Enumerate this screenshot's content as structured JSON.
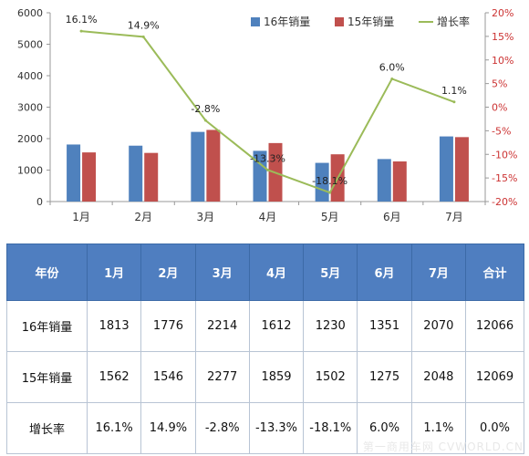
{
  "chart_data": {
    "type": "bar",
    "categories": [
      "1月",
      "2月",
      "3月",
      "4月",
      "5月",
      "6月",
      "7月"
    ],
    "series": [
      {
        "name": "16年销量",
        "values": [
          1813,
          1776,
          2214,
          1612,
          1230,
          1351,
          2070
        ],
        "color": "#4f81bd",
        "axis": "left"
      },
      {
        "name": "15年销量",
        "values": [
          1562,
          1546,
          2277,
          1859,
          1502,
          1275,
          2048
        ],
        "color": "#c0504d",
        "axis": "left"
      }
    ],
    "line_series": {
      "name": "增长率",
      "values": [
        16.1,
        14.9,
        -2.8,
        -13.3,
        -18.1,
        6.0,
        1.1
      ],
      "labels": [
        "16.1%",
        "14.9%",
        "-2.8%",
        "-13.3%",
        "-18.1%",
        "6.0%",
        "1.1%"
      ],
      "color": "#9bbb59",
      "axis": "right"
    },
    "ylim": [
      0,
      6000
    ],
    "y_ticks": [
      "0",
      "1000",
      "2000",
      "3000",
      "4000",
      "5000",
      "6000"
    ],
    "y2lim": [
      -20,
      20
    ],
    "y2_ticks": [
      "-20%",
      "-15%",
      "-10%",
      "-5%",
      "0%",
      "5%",
      "10%",
      "15%",
      "20%"
    ],
    "legend_position": "top-right",
    "grid": false
  },
  "table": {
    "headers": [
      "年份",
      "1月",
      "2月",
      "3月",
      "4月",
      "5月",
      "6月",
      "7月",
      "合计"
    ],
    "rows": [
      [
        "16年销量",
        "1813",
        "1776",
        "2214",
        "1612",
        "1230",
        "1351",
        "2070",
        "12066"
      ],
      [
        "15年销量",
        "1562",
        "1546",
        "2277",
        "1859",
        "1502",
        "1275",
        "2048",
        "12069"
      ],
      [
        "增长率",
        "16.1%",
        "14.9%",
        "-2.8%",
        "-13.3%",
        "-18.1%",
        "6.0%",
        "1.1%",
        "0.0%"
      ]
    ]
  },
  "watermark": "第一商用车网 CVWORLD.CN"
}
